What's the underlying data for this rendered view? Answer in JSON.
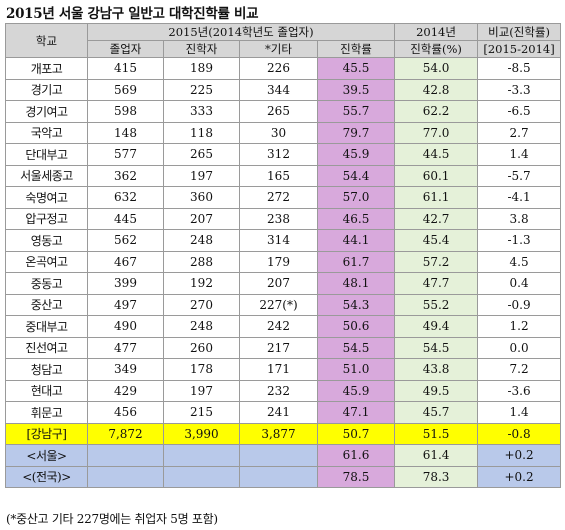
{
  "title": "2015년 서울 강남구 일반고 대학진학률 비교",
  "note": "(*중산고 기타 227명에는 취업자 5명 포함)",
  "header": {
    "school": "학교",
    "group2015": "2015년(2014학년도 졸업자)",
    "group2014": "2014년",
    "groupDiff": "비교(진학률)",
    "graduates": "졸업자",
    "enrolled": "진학자",
    "other": "*기타",
    "rate": "진학률",
    "rate2014": "진학률(%)",
    "diffRange": "[2015-2014]"
  },
  "rows": [
    {
      "school": "개포고",
      "graduates": "415",
      "enrolled": "189",
      "other": "226",
      "rate": "45.5",
      "rate2014": "54.0",
      "diff": "-8.5"
    },
    {
      "school": "경기고",
      "graduates": "569",
      "enrolled": "225",
      "other": "344",
      "rate": "39.5",
      "rate2014": "42.8",
      "diff": "-3.3"
    },
    {
      "school": "경기여고",
      "graduates": "598",
      "enrolled": "333",
      "other": "265",
      "rate": "55.7",
      "rate2014": "62.2",
      "diff": "-6.5"
    },
    {
      "school": "국악고",
      "graduates": "148",
      "enrolled": "118",
      "other": "30",
      "rate": "79.7",
      "rate2014": "77.0",
      "diff": "2.7"
    },
    {
      "school": "단대부고",
      "graduates": "577",
      "enrolled": "265",
      "other": "312",
      "rate": "45.9",
      "rate2014": "44.5",
      "diff": "1.4"
    },
    {
      "school": "서울세종고",
      "graduates": "362",
      "enrolled": "197",
      "other": "165",
      "rate": "54.4",
      "rate2014": "60.1",
      "diff": "-5.7"
    },
    {
      "school": "숙명여고",
      "graduates": "632",
      "enrolled": "360",
      "other": "272",
      "rate": "57.0",
      "rate2014": "61.1",
      "diff": "-4.1"
    },
    {
      "school": "압구정고",
      "graduates": "445",
      "enrolled": "207",
      "other": "238",
      "rate": "46.5",
      "rate2014": "42.7",
      "diff": "3.8"
    },
    {
      "school": "영동고",
      "graduates": "562",
      "enrolled": "248",
      "other": "314",
      "rate": "44.1",
      "rate2014": "45.4",
      "diff": "-1.3"
    },
    {
      "school": "온곡여고",
      "graduates": "467",
      "enrolled": "288",
      "other": "179",
      "rate": "61.7",
      "rate2014": "57.2",
      "diff": "4.5"
    },
    {
      "school": "중동고",
      "graduates": "399",
      "enrolled": "192",
      "other": "207",
      "rate": "48.1",
      "rate2014": "47.7",
      "diff": "0.4"
    },
    {
      "school": "중산고",
      "graduates": "497",
      "enrolled": "270",
      "other": "227(*)",
      "rate": "54.3",
      "rate2014": "55.2",
      "diff": "-0.9"
    },
    {
      "school": "중대부고",
      "graduates": "490",
      "enrolled": "248",
      "other": "242",
      "rate": "50.6",
      "rate2014": "49.4",
      "diff": "1.2"
    },
    {
      "school": "진선여고",
      "graduates": "477",
      "enrolled": "260",
      "other": "217",
      "rate": "54.5",
      "rate2014": "54.5",
      "diff": "0.0"
    },
    {
      "school": "청담고",
      "graduates": "349",
      "enrolled": "178",
      "other": "171",
      "rate": "51.0",
      "rate2014": "43.8",
      "diff": "7.2"
    },
    {
      "school": "현대고",
      "graduates": "429",
      "enrolled": "197",
      "other": "232",
      "rate": "45.9",
      "rate2014": "49.5",
      "diff": "-3.6"
    },
    {
      "school": "휘문고",
      "graduates": "456",
      "enrolled": "215",
      "other": "241",
      "rate": "47.1",
      "rate2014": "45.7",
      "diff": "1.4"
    }
  ],
  "summary": {
    "gangnam": {
      "school": "[강남구]",
      "graduates": "7,872",
      "enrolled": "3,990",
      "other": "3,877",
      "rate": "50.7",
      "rate2014": "51.5",
      "diff": "-0.8"
    },
    "seoul": {
      "school": "<서울>",
      "rate": "61.6",
      "rate2014": "61.4",
      "diff": "+0.2"
    },
    "national": {
      "school": "<(전국)>",
      "rate": "78.5",
      "rate2014": "78.3",
      "diff": "+0.2"
    }
  },
  "colors": {
    "header_gray": "#d6d6d6",
    "rate_purple": "#d8a9dc",
    "rate2014_green": "#e5f1d9",
    "gangnam_yellow": "#ffff00",
    "summary_blue": "#b9c9ea"
  }
}
